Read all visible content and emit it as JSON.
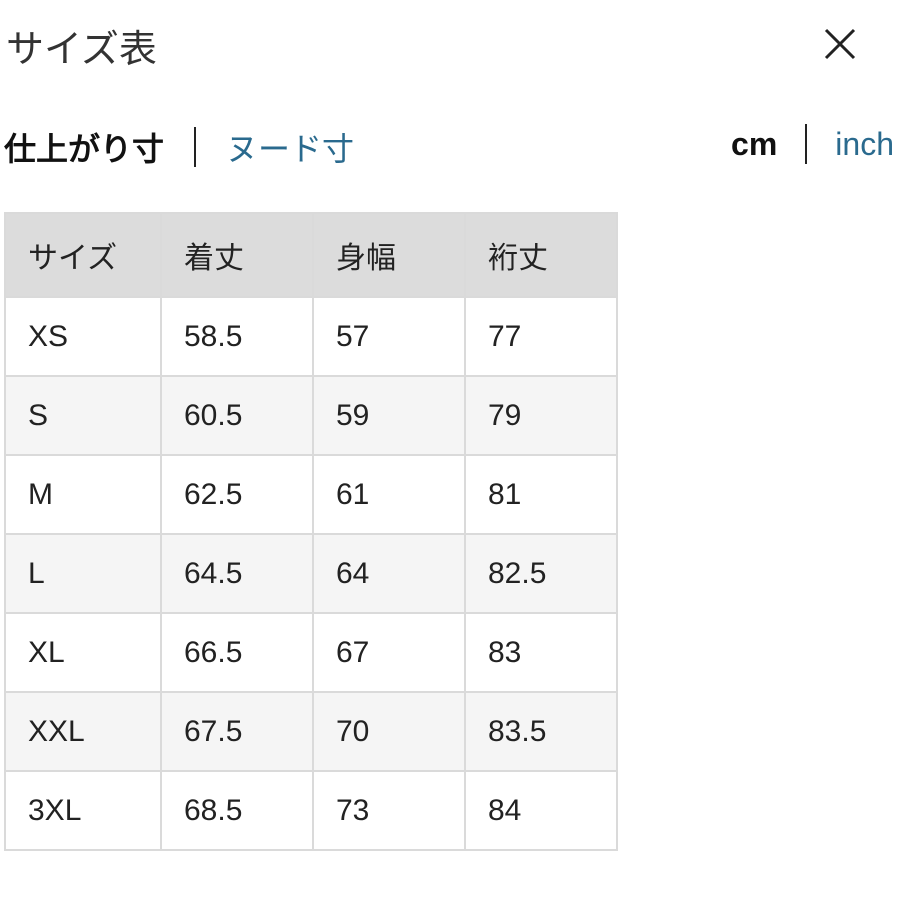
{
  "header": {
    "title": "サイズ表",
    "close_icon": "close-icon"
  },
  "measure_tabs": [
    {
      "label": "仕上がり寸",
      "active": true
    },
    {
      "label": "ヌード寸",
      "active": false
    }
  ],
  "unit_tabs": [
    {
      "label": "cm",
      "active": true
    },
    {
      "label": "inch",
      "active": false
    }
  ],
  "colors": {
    "link": "#2a6a8e",
    "header_bg": "#dcdcdc",
    "alt_row_bg": "#f5f5f5"
  },
  "table": {
    "columns": [
      "サイズ",
      "着丈",
      "身幅",
      "裄丈"
    ],
    "rows": [
      [
        "XS",
        "58.5",
        "57",
        "77"
      ],
      [
        "S",
        "60.5",
        "59",
        "79"
      ],
      [
        "M",
        "62.5",
        "61",
        "81"
      ],
      [
        "L",
        "64.5",
        "64",
        "82.5"
      ],
      [
        "XL",
        "66.5",
        "67",
        "83"
      ],
      [
        "XXL",
        "67.5",
        "70",
        "83.5"
      ],
      [
        "3XL",
        "68.5",
        "73",
        "84"
      ]
    ]
  }
}
